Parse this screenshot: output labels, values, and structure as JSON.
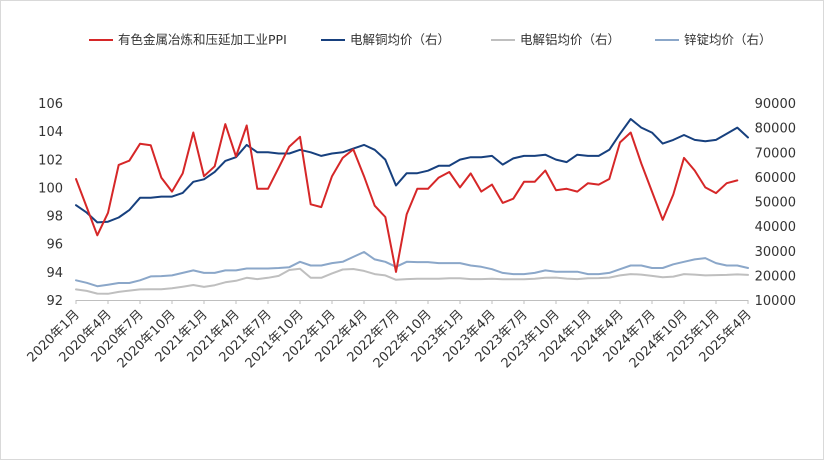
{
  "chart_data": {
    "type": "line",
    "legend_position": "top",
    "grid": false,
    "x": [
      "2020年1月",
      "2020年2月",
      "2020年3月",
      "2020年4月",
      "2020年5月",
      "2020年6月",
      "2020年7月",
      "2020年8月",
      "2020年9月",
      "2020年10月",
      "2020年11月",
      "2020年12月",
      "2021年1月",
      "2021年2月",
      "2021年3月",
      "2021年4月",
      "2021年5月",
      "2021年6月",
      "2021年7月",
      "2021年8月",
      "2021年9月",
      "2021年10月",
      "2021年11月",
      "2021年12月",
      "2022年1月",
      "2022年2月",
      "2022年3月",
      "2022年4月",
      "2022年5月",
      "2022年6月",
      "2022年7月",
      "2022年8月",
      "2022年9月",
      "2022年10月",
      "2022年11月",
      "2022年12月",
      "2023年1月",
      "2023年2月",
      "2023年3月",
      "2023年4月",
      "2023年5月",
      "2023年6月",
      "2023年7月",
      "2023年8月",
      "2023年9月",
      "2023年10月",
      "2023年11月",
      "2023年12月",
      "2024年1月",
      "2024年2月",
      "2024年3月",
      "2024年4月",
      "2024年5月",
      "2024年6月",
      "2024年7月",
      "2024年8月",
      "2024年9月",
      "2024年10月",
      "2024年11月",
      "2024年12月",
      "2025年1月",
      "2025年2月",
      "2025年3月",
      "2025年4月"
    ],
    "x_tick_labels": [
      "2020年1月",
      "2020年4月",
      "2020年7月",
      "2020年10月",
      "2021年1月",
      "2021年4月",
      "2021年7月",
      "2021年10月",
      "2022年1月",
      "2022年4月",
      "2022年7月",
      "2022年10月",
      "2023年1月",
      "2023年4月",
      "2023年7月",
      "2023年10月",
      "2024年1月",
      "2024年4月",
      "2024年7月",
      "2024年10月",
      "2025年1月",
      "2025年4月"
    ],
    "y_left": {
      "min": 92,
      "max": 106,
      "ticks": [
        92,
        94,
        96,
        98,
        100,
        102,
        104,
        106
      ]
    },
    "y_right": {
      "min": 10000,
      "max": 90000,
      "ticks": [
        10000,
        20000,
        30000,
        40000,
        50000,
        60000,
        70000,
        80000,
        90000
      ]
    },
    "series": [
      {
        "name": "有色金属冶炼和压延加工业PPI",
        "axis": "left",
        "color": "#d62728",
        "values": [
          100.6,
          98.6,
          96.6,
          98.2,
          101.6,
          101.9,
          103.1,
          103.0,
          100.7,
          99.7,
          101.0,
          103.9,
          100.8,
          101.5,
          104.5,
          102.2,
          104.4,
          99.9,
          99.9,
          101.4,
          102.9,
          103.6,
          98.8,
          98.6,
          100.8,
          102.1,
          102.7,
          100.8,
          98.7,
          97.9,
          94.0,
          98.1,
          99.9,
          99.9,
          100.7,
          101.1,
          100.0,
          101.0,
          99.7,
          100.2,
          98.9,
          99.2,
          100.4,
          100.4,
          101.2,
          99.8,
          99.9,
          99.7,
          100.3,
          100.2,
          100.6,
          103.2,
          103.9,
          101.7,
          99.7,
          97.7,
          99.5,
          102.1,
          101.2,
          100.0,
          99.6,
          100.3,
          100.5,
          null
        ]
      },
      {
        "name": "电解铜均价（右）",
        "axis": "right",
        "color": "#17407e",
        "values": [
          48500,
          45500,
          41500,
          41800,
          43500,
          46500,
          51500,
          51500,
          52000,
          52000,
          53500,
          58000,
          59000,
          62000,
          66500,
          68000,
          73000,
          70000,
          70000,
          69500,
          69500,
          71000,
          70000,
          68500,
          69500,
          70000,
          71500,
          73000,
          71000,
          67000,
          56500,
          61500,
          61500,
          62500,
          64500,
          64500,
          67000,
          68000,
          68000,
          68500,
          65000,
          67500,
          68500,
          68500,
          69000,
          67000,
          66000,
          69000,
          68500,
          68500,
          71000,
          77500,
          83500,
          80000,
          78000,
          73500,
          75000,
          77000,
          75000,
          74500,
          75000,
          77500,
          80000,
          76000
        ]
      },
      {
        "name": "电解铝均价（右）",
        "axis": "right",
        "color": "#bfbfbf",
        "values": [
          14300,
          13700,
          12600,
          12500,
          13300,
          13800,
          14300,
          14400,
          14400,
          14800,
          15400,
          16100,
          15300,
          16000,
          17200,
          17800,
          19000,
          18500,
          19000,
          19800,
          22200,
          22700,
          19000,
          19000,
          20800,
          22400,
          22600,
          21800,
          20500,
          20000,
          18200,
          18500,
          18600,
          18600,
          18600,
          18800,
          18800,
          18500,
          18500,
          18600,
          18400,
          18400,
          18400,
          18600,
          19000,
          19100,
          18700,
          18500,
          18800,
          18900,
          19100,
          20000,
          20500,
          20300,
          19800,
          19200,
          19500,
          20500,
          20300,
          20000,
          20100,
          20200,
          20400,
          20200
        ]
      },
      {
        "name": "锌锭均价（右）",
        "axis": "right",
        "color": "#8ba7c9",
        "values": [
          18000,
          17000,
          15600,
          16200,
          16900,
          16900,
          18000,
          19600,
          19700,
          20000,
          21000,
          22000,
          21000,
          21000,
          22000,
          22000,
          22800,
          22800,
          22800,
          23000,
          23300,
          25500,
          24000,
          24000,
          25000,
          25500,
          27500,
          29500,
          26500,
          25500,
          23500,
          25500,
          25400,
          25400,
          25000,
          25000,
          25000,
          24000,
          23500,
          22500,
          21000,
          20500,
          20500,
          21000,
          22000,
          21500,
          21500,
          21500,
          20500,
          20500,
          21000,
          22500,
          24000,
          24000,
          23000,
          23000,
          24500,
          25500,
          26500,
          27000,
          25000,
          24000,
          24000,
          23000
        ]
      }
    ]
  }
}
